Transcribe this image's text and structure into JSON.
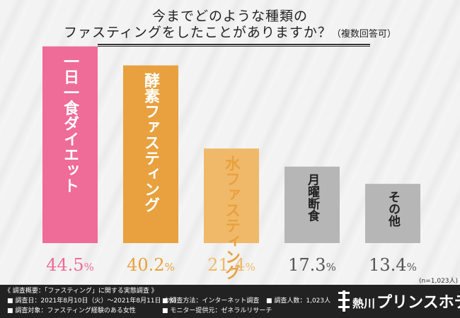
{
  "title": {
    "line1": "今までどのような種類の",
    "line2": "ファスティングをしたことがありますか？",
    "note": "（複数回答可）"
  },
  "chart_data": {
    "type": "bar",
    "categories": [
      "一日一食ダイエット",
      "酵素ファスティング",
      "水ファスティング",
      "月曜断食",
      "その他"
    ],
    "values": [
      44.5,
      40.2,
      21.4,
      17.3,
      13.4
    ],
    "value_unit": "%",
    "ylim": [
      0,
      47
    ],
    "colors": [
      "#ef6b98",
      "#e8a13e",
      "#f0b96a",
      "#b6b6b6",
      "#b6b6b6"
    ],
    "label_colors": [
      "#ef6b98",
      "#e8a13e",
      "#f0b96a",
      "#555555",
      "#555555"
    ],
    "sample_note": "(n=1,023人)"
  },
  "footer": {
    "heading": "《 調査概要：「ファスティング」に関する実態調査 》",
    "date": "■ 調査日：2021年8月10日（火）〜2021年8月11日（水）",
    "target": "■ 調査対象：ファスティング経験のある女性",
    "method": "■ 調査方法：インターネット調査",
    "provider": "■ モニター提供元：ゼネラルリサーチ",
    "count": "■ 調査人数：1,023人",
    "logo_place": "熱川",
    "logo_name": "プリンスホテル"
  }
}
